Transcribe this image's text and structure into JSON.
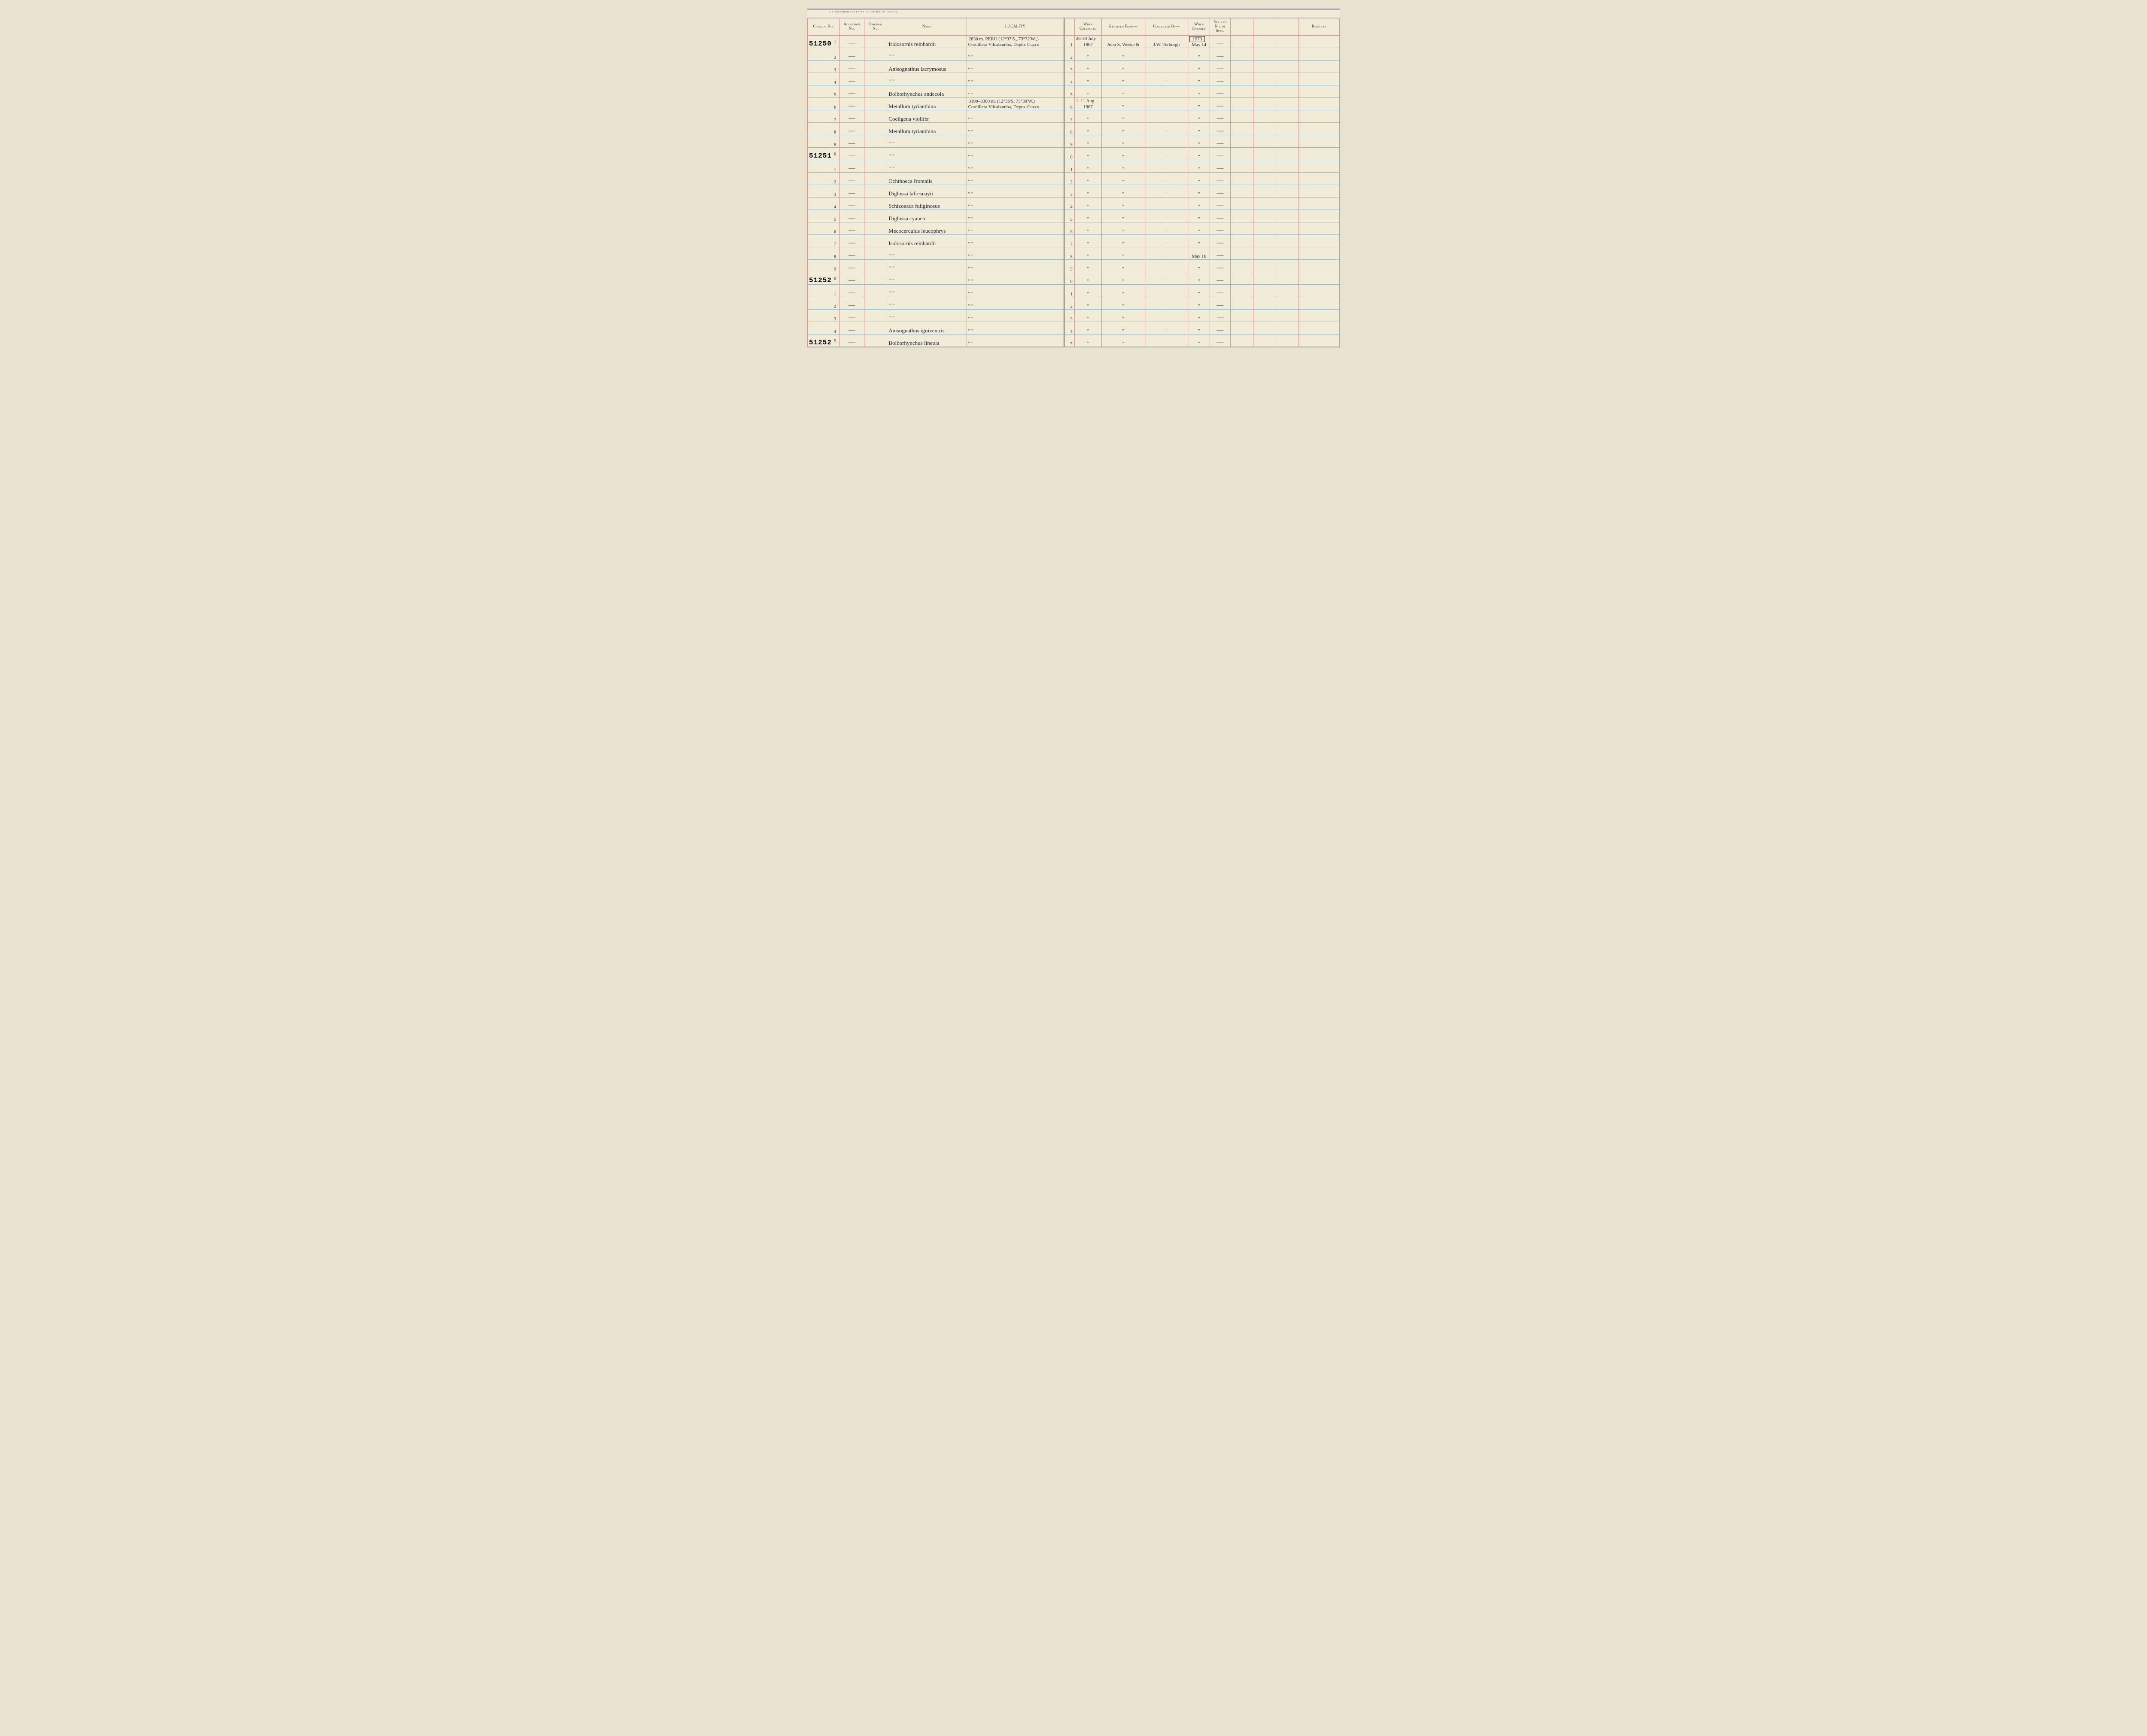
{
  "meta": {
    "print_office": "U.S. GOVERNMENT PRINTING OFFICE   16—55861-2"
  },
  "headers": {
    "catalog": "Catalog No.",
    "accession": "Accession No.",
    "original": "Original No.",
    "name": "Name",
    "locality": "LOCALITY",
    "when_collected": "When Collected",
    "received": "Received From—",
    "collected_by": "Collected By—",
    "when_entered": "When Entered",
    "sex": "Sex and No. of Spec.",
    "remarks": "Remarks"
  },
  "rows": [
    {
      "catalog_big": "51250",
      "seq": "1",
      "accession": "—",
      "name": "Iridosornis reinhardti",
      "locality_above": "2830 m.    <u>PERU</u> (12°37'S., 73°32'W.,)",
      "locality": "Cordillera Vilcabamba, Depto. Cuzco",
      "seq2": "1",
      "when_coll_above": "26-30 July",
      "when_coll": "1967",
      "received": "John S. Weske &",
      "collected_by": "J.W. Terborgh",
      "when_ent_above": "1973",
      "when_ent": "May 14",
      "sex": "—"
    },
    {
      "seq": "2",
      "accession": "—",
      "name": "\"        \"",
      "locality": "\"                    \"",
      "seq2": "2",
      "when_coll": "\"",
      "received": "\"",
      "collected_by": "\"",
      "when_ent": "\"",
      "sex": "—"
    },
    {
      "seq": "3",
      "accession": "—",
      "name": "Anisognathus lacrymosus",
      "locality": "\"                    \"",
      "seq2": "3",
      "when_coll": "\"",
      "received": "\"",
      "collected_by": "\"",
      "when_ent": "\"",
      "sex": "—"
    },
    {
      "seq": "4",
      "accession": "—",
      "name": "\"        \"",
      "locality": "\"                    \"",
      "seq2": "4",
      "when_coll": "\"",
      "received": "\"",
      "collected_by": "\"",
      "when_ent": "\"",
      "sex": "—"
    },
    {
      "seq": "5",
      "accession": "—",
      "name": "Bolborhynchus andecola",
      "locality": "\"                    \"",
      "seq2": "5",
      "when_coll": "\"",
      "received": "\"",
      "collected_by": "\"",
      "when_ent": "\"",
      "sex": "—"
    },
    {
      "seq": "6",
      "accession": "—",
      "name": "Metallura tyrianthina",
      "locality_above": "3190–3300 m. (12°36'S, 73°30'W.)",
      "locality": "Cordillera Vilcabamba, Depto. Cuzco",
      "seq2": "6",
      "when_coll_above": "1–11 Aug.",
      "when_coll": "1967",
      "received": "\"",
      "collected_by": "\"",
      "when_ent": "\"",
      "sex": "—"
    },
    {
      "seq": "7",
      "accession": "—",
      "name": "Coeligena violifer",
      "locality": "\"                    \"",
      "seq2": "7",
      "when_coll": "\"",
      "received": "\"",
      "collected_by": "\"",
      "when_ent": "\"",
      "sex": "—"
    },
    {
      "seq": "8",
      "accession": "—",
      "name": "Metallura tyrianthina",
      "locality": "\"                    \"",
      "seq2": "8",
      "when_coll": "\"",
      "received": "\"",
      "collected_by": "\"",
      "when_ent": "\"",
      "sex": "—"
    },
    {
      "seq": "9",
      "accession": "—",
      "name": "\"        \"",
      "locality": "\"                    \"",
      "seq2": "9",
      "when_coll": "\"",
      "received": "\"",
      "collected_by": "\"",
      "when_ent": "\"",
      "sex": "—"
    },
    {
      "catalog_big": "51251",
      "seq": "0",
      "accession": "—",
      "name": "\"        \"",
      "locality": "\"                    \"",
      "seq2": "0",
      "when_coll": "\"",
      "received": "\"",
      "collected_by": "\"",
      "when_ent": "\"",
      "sex": "—"
    },
    {
      "seq": "1",
      "accession": "—",
      "name": "\"        \"",
      "locality": "\"                    \"",
      "seq2": "1",
      "when_coll": "\"",
      "received": "\"",
      "collected_by": "\"",
      "when_ent": "\"",
      "sex": "—"
    },
    {
      "seq": "2",
      "accession": "—",
      "name": "Ochthoeca frontalis",
      "locality": "\"                    \"",
      "seq2": "2",
      "when_coll": "\"",
      "received": "\"",
      "collected_by": "\"",
      "when_ent": "\"",
      "sex": "—"
    },
    {
      "seq": "3",
      "accession": "—",
      "name": "Diglossa lafresnayii",
      "locality": "\"                    \"",
      "seq2": "3",
      "when_coll": "\"",
      "received": "\"",
      "collected_by": "\"",
      "when_ent": "\"",
      "sex": "—"
    },
    {
      "seq": "4",
      "accession": "—",
      "name": "Schizoeaca fuliginosus",
      "locality": "\"                    \"",
      "seq2": "4",
      "when_coll": "\"",
      "received": "\"",
      "collected_by": "\"",
      "when_ent": "\"",
      "sex": "—"
    },
    {
      "seq": "5",
      "accession": "—",
      "name": "Diglossa cyanea",
      "locality": "\"                    \"",
      "seq2": "5",
      "when_coll": "\"",
      "received": "\"",
      "collected_by": "\"",
      "when_ent": "\"",
      "sex": "—"
    },
    {
      "seq": "6",
      "accession": "—",
      "name": "Mecocerculus leucophrys",
      "locality": "\"                    \"",
      "seq2": "6",
      "when_coll": "\"",
      "received": "\"",
      "collected_by": "\"",
      "when_ent": "\"",
      "sex": "—"
    },
    {
      "seq": "7",
      "accession": "—",
      "name": "Iridosornis reinhardti",
      "locality": "\"                    \"",
      "seq2": "7",
      "when_coll": "\"",
      "received": "\"",
      "collected_by": "\"",
      "when_ent": "\"",
      "sex": "—"
    },
    {
      "seq": "8",
      "accession": "—",
      "name": "\"        \"",
      "locality": "\"                    \"",
      "seq2": "8",
      "when_coll": "\"",
      "received": "\"",
      "collected_by": "\"",
      "when_ent": "May 16",
      "sex": "—"
    },
    {
      "seq": "9",
      "accession": "—",
      "name": "\"        \"",
      "locality": "\"                    \"",
      "seq2": "9",
      "when_coll": "\"",
      "received": "\"",
      "collected_by": "\"",
      "when_ent": "\"",
      "sex": "—"
    },
    {
      "catalog_big": "51252",
      "seq": "0",
      "accession": "—",
      "name": "\"        \"",
      "locality": "\"                    \"",
      "seq2": "0",
      "when_coll": "\"",
      "received": "\"",
      "collected_by": "\"",
      "when_ent": "\"",
      "sex": "—"
    },
    {
      "seq": "1",
      "accession": "—",
      "name": "\"        \"",
      "locality": "\"                    \"",
      "seq2": "1",
      "when_coll": "\"",
      "received": "\"",
      "collected_by": "\"",
      "when_ent": "\"",
      "sex": "—"
    },
    {
      "seq": "2",
      "accession": "—",
      "name": "\"        \"",
      "locality": "\"                    \"",
      "seq2": "2",
      "when_coll": "\"",
      "received": "\"",
      "collected_by": "\"",
      "when_ent": "\"",
      "sex": "—"
    },
    {
      "seq": "3",
      "accession": "—",
      "name": "\"        \"",
      "locality": "\"                    \"",
      "seq2": "3",
      "when_coll": "\"",
      "received": "\"",
      "collected_by": "\"",
      "when_ent": "\"",
      "sex": "—"
    },
    {
      "seq": "4",
      "accession": "—",
      "name": "Anisognathus igniventris",
      "locality": "\"                    \"",
      "seq2": "4",
      "when_coll": "\"",
      "received": "\"",
      "collected_by": "\"",
      "when_ent": "\"",
      "sex": "—"
    },
    {
      "catalog_big": "51252",
      "seq": "5",
      "accession": "—",
      "name": "Bolborhynchus lineola",
      "locality": "\"                    \"",
      "seq2": "5",
      "when_coll": "\"",
      "received": "\"",
      "collected_by": "\"",
      "when_ent": "\"",
      "sex": "—"
    }
  ],
  "style": {
    "rule_red": "#e89090",
    "rule_blue": "#8ab8d8",
    "paper": "#f0ecd8",
    "ink": "#2a2a3a",
    "header_purple": "#b8a0c0"
  }
}
